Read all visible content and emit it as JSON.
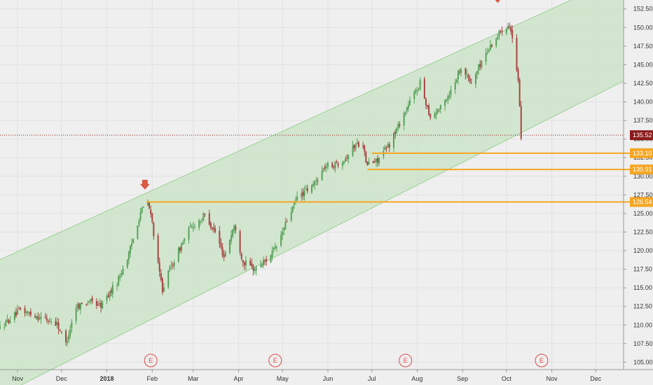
{
  "chart_data": {
    "type": "candlestick",
    "title": "",
    "xlabel": "",
    "ylabel": "",
    "x_ticks": [
      {
        "label": "Nov",
        "date": "2017-11-01"
      },
      {
        "label": "Dec",
        "date": "2017-12-01"
      },
      {
        "label": "2018",
        "date": "2018-01-01",
        "bold": true
      },
      {
        "label": "Feb",
        "date": "2018-02-01"
      },
      {
        "label": "Mar",
        "date": "2018-03-01"
      },
      {
        "label": "Apr",
        "date": "2018-04-01"
      },
      {
        "label": "May",
        "date": "2018-05-01"
      },
      {
        "label": "Jun",
        "date": "2018-06-01"
      },
      {
        "label": "Jul",
        "date": "2018-07-01"
      },
      {
        "label": "Aug",
        "date": "2018-08-01"
      },
      {
        "label": "Sep",
        "date": "2018-09-01"
      },
      {
        "label": "Oct",
        "date": "2018-10-01"
      },
      {
        "label": "Nov",
        "date": "2018-11-01"
      },
      {
        "label": "Dec",
        "date": "2018-12-01"
      }
    ],
    "xlim": [
      "2017-10-20",
      "2018-12-20"
    ],
    "y_ticks": [
      "105.00",
      "107.50",
      "110.00",
      "112.50",
      "115.00",
      "117.50",
      "120.00",
      "122.50",
      "125.00",
      "127.50",
      "130.00",
      "132.50",
      "135.00",
      "137.50",
      "140.00",
      "142.50",
      "145.00",
      "147.50",
      "150.00",
      "152.50"
    ],
    "ylim": [
      104,
      153.7
    ],
    "grid": true,
    "price_path": [
      [
        "2017-10-20",
        109.6
      ],
      [
        "2017-11-03",
        112.0
      ],
      [
        "2017-11-17",
        111.0
      ],
      [
        "2017-11-28",
        110.2
      ],
      [
        "2017-12-04",
        107.5
      ],
      [
        "2017-12-11",
        112.5
      ],
      [
        "2017-12-20",
        113.2
      ],
      [
        "2017-12-28",
        112.6
      ],
      [
        "2018-01-08",
        115.8
      ],
      [
        "2018-01-16",
        119.5
      ],
      [
        "2018-01-24",
        125.2
      ],
      [
        "2018-01-29",
        126.5
      ],
      [
        "2018-02-01",
        123.8
      ],
      [
        "2018-02-05",
        118.0
      ],
      [
        "2018-02-08",
        114.8
      ],
      [
        "2018-02-13",
        117.5
      ],
      [
        "2018-02-26",
        122.8
      ],
      [
        "2018-03-09",
        124.8
      ],
      [
        "2018-03-16",
        122.5
      ],
      [
        "2018-03-22",
        119.2
      ],
      [
        "2018-03-29",
        123.4
      ],
      [
        "2018-04-04",
        118.5
      ],
      [
        "2018-04-12",
        117.5
      ],
      [
        "2018-04-20",
        118.8
      ],
      [
        "2018-04-27",
        120.5
      ],
      [
        "2018-05-04",
        124.0
      ],
      [
        "2018-05-11",
        127.2
      ],
      [
        "2018-05-21",
        128.5
      ],
      [
        "2018-05-30",
        131.3
      ],
      [
        "2018-06-06",
        131.6
      ],
      [
        "2018-06-13",
        132.5
      ],
      [
        "2018-06-20",
        134.3
      ],
      [
        "2018-06-25",
        134.5
      ],
      [
        "2018-06-27",
        131.6
      ],
      [
        "2018-07-04",
        132.0
      ],
      [
        "2018-07-13",
        134.3
      ],
      [
        "2018-07-20",
        137.2
      ],
      [
        "2018-07-27",
        140.0
      ],
      [
        "2018-08-03",
        142.5
      ],
      [
        "2018-08-10",
        138.0
      ],
      [
        "2018-08-17",
        139.2
      ],
      [
        "2018-08-24",
        141.5
      ],
      [
        "2018-08-31",
        144.8
      ],
      [
        "2018-09-07",
        142.5
      ],
      [
        "2018-09-14",
        145.5
      ],
      [
        "2018-09-21",
        147.8
      ],
      [
        "2018-09-28",
        149.8
      ],
      [
        "2018-10-03",
        150.5
      ],
      [
        "2018-10-05",
        148.5
      ],
      [
        "2018-10-09",
        142.5
      ],
      [
        "2018-10-11",
        135.5
      ]
    ],
    "earnings": [
      {
        "label": "E",
        "date": "2018-01-31"
      },
      {
        "label": "E",
        "date": "2018-04-26"
      },
      {
        "label": "E",
        "date": "2018-07-24"
      },
      {
        "label": "E",
        "date": "2018-10-25"
      }
    ],
    "channel": {
      "upper": [
        [
          "2017-10-20",
          118.8
        ],
        [
          "2018-12-20",
          156.9
        ]
      ],
      "lower": [
        [
          "2017-10-20",
          100.5
        ],
        [
          "2018-12-20",
          142.8
        ]
      ],
      "fill": "#c8e3c4",
      "stroke": "#9ccf95"
    },
    "arrows": [
      {
        "date": "2018-01-27",
        "price": 128.2
      },
      {
        "date": "2018-09-25",
        "price": 153.3
      }
    ],
    "levels": [
      {
        "price": 126.54,
        "label": "126.54",
        "start": "2018-01-28"
      },
      {
        "price": 133.1,
        "label": "133.10",
        "start": "2018-07-01"
      },
      {
        "price": 130.91,
        "label": "130.91",
        "start": "2018-06-28"
      }
    ],
    "last_price": {
      "price": 135.52,
      "label": "135.52"
    },
    "colors": {
      "up": "#58a05a",
      "down": "#a84343",
      "level": "#f5a623",
      "last": "#8b1a1a",
      "arrow": "#d95b43",
      "earnings": "#e04848"
    }
  }
}
